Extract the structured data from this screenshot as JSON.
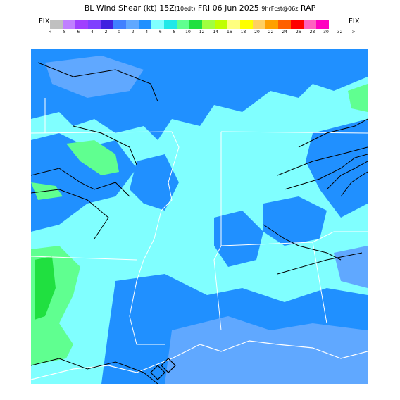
{
  "header": {
    "title_main": "BL Wind Shear (kt)  15Z",
    "title_tz": "(10edt)",
    "title_date": " FRI 06 Jun 2025 ",
    "title_run": "9hrFcst@06z",
    "title_model": " RAP"
  },
  "legend": {
    "fix_left": "FIX",
    "fix_right": "FIX",
    "colors": [
      "#c0c0c0",
      "#c080ff",
      "#a040ff",
      "#8040ff",
      "#4020e0",
      "#4080ff",
      "#60a8ff",
      "#2090ff",
      "#80ffff",
      "#20e8e8",
      "#60ff90",
      "#20e040",
      "#a0ff40",
      "#c0ff00",
      "#ffff80",
      "#ffff00",
      "#ffd060",
      "#ffa000",
      "#ff6000",
      "#ff0000",
      "#ff60c0",
      "#ff00c0"
    ],
    "ticks": [
      "<",
      "-8",
      "-6",
      "-4",
      "-2",
      "0",
      "2",
      "4",
      "6",
      "8",
      "10",
      "12",
      "14",
      "16",
      "18",
      "20",
      "22",
      "24",
      "26",
      "28",
      "30",
      "32",
      ">"
    ]
  },
  "map": {
    "description_colors": {
      "dominant": "#80ffff",
      "blue": "#2090ff",
      "light_blue": "#60a8ff",
      "green": "#60ff90",
      "bright_green": "#20e040"
    }
  }
}
